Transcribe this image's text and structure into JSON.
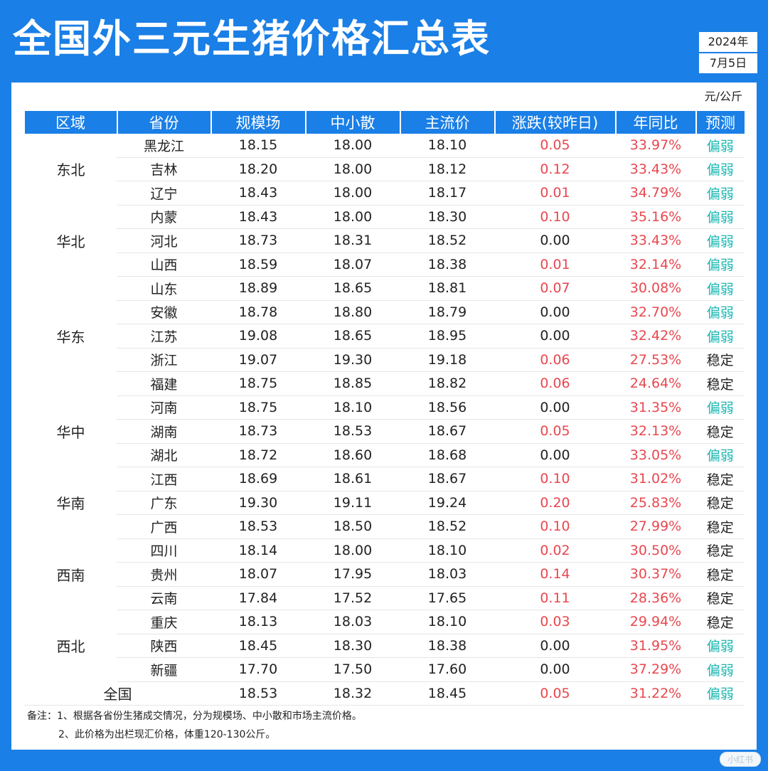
{
  "title": "全国外三元生猪价格汇总表",
  "date": {
    "year": "2024年",
    "day": "7月5日"
  },
  "unit": "元/公斤",
  "headers": [
    "区域",
    "省份",
    "规模场",
    "中小散",
    "主流价",
    "涨跌(较昨日)",
    "年同比",
    "预测"
  ],
  "colors": {
    "header_bg": "#1a7fe6",
    "up": "#e8474f",
    "weak": "#18b6b0"
  },
  "regions": [
    {
      "name": "东北",
      "rows": [
        {
          "province": "黑龙江",
          "scale": "18.15",
          "small": "18.00",
          "main": "18.10",
          "change": "0.05",
          "yoy": "33.97%",
          "forecast": "偏弱"
        },
        {
          "province": "吉林",
          "scale": "18.20",
          "small": "18.00",
          "main": "18.12",
          "change": "0.12",
          "yoy": "33.43%",
          "forecast": "偏弱"
        },
        {
          "province": "辽宁",
          "scale": "18.43",
          "small": "18.00",
          "main": "18.17",
          "change": "0.01",
          "yoy": "34.79%",
          "forecast": "偏弱"
        }
      ]
    },
    {
      "name": "华北",
      "rows": [
        {
          "province": "内蒙",
          "scale": "18.43",
          "small": "18.00",
          "main": "18.30",
          "change": "0.10",
          "yoy": "35.16%",
          "forecast": "偏弱"
        },
        {
          "province": "河北",
          "scale": "18.73",
          "small": "18.31",
          "main": "18.52",
          "change": "0.00",
          "yoy": "33.43%",
          "forecast": "偏弱"
        },
        {
          "province": "山西",
          "scale": "18.59",
          "small": "18.07",
          "main": "18.38",
          "change": "0.01",
          "yoy": "32.14%",
          "forecast": "偏弱"
        }
      ]
    },
    {
      "name": "华东",
      "rows": [
        {
          "province": "山东",
          "scale": "18.89",
          "small": "18.65",
          "main": "18.81",
          "change": "0.07",
          "yoy": "30.08%",
          "forecast": "偏弱"
        },
        {
          "province": "安徽",
          "scale": "18.78",
          "small": "18.80",
          "main": "18.79",
          "change": "0.00",
          "yoy": "32.70%",
          "forecast": "偏弱"
        },
        {
          "province": "江苏",
          "scale": "19.08",
          "small": "18.65",
          "main": "18.95",
          "change": "0.00",
          "yoy": "32.42%",
          "forecast": "偏弱"
        },
        {
          "province": "浙江",
          "scale": "19.07",
          "small": "19.30",
          "main": "19.18",
          "change": "0.06",
          "yoy": "27.53%",
          "forecast": "稳定"
        },
        {
          "province": "福建",
          "scale": "18.75",
          "small": "18.85",
          "main": "18.82",
          "change": "0.06",
          "yoy": "24.64%",
          "forecast": "稳定"
        }
      ]
    },
    {
      "name": "华中",
      "rows": [
        {
          "province": "河南",
          "scale": "18.75",
          "small": "18.10",
          "main": "18.56",
          "change": "0.00",
          "yoy": "31.35%",
          "forecast": "偏弱"
        },
        {
          "province": "湖南",
          "scale": "18.73",
          "small": "18.53",
          "main": "18.67",
          "change": "0.05",
          "yoy": "32.13%",
          "forecast": "稳定"
        },
        {
          "province": "湖北",
          "scale": "18.72",
          "small": "18.60",
          "main": "18.68",
          "change": "0.00",
          "yoy": "33.05%",
          "forecast": "偏弱"
        }
      ]
    },
    {
      "name": "华南",
      "rows": [
        {
          "province": "江西",
          "scale": "18.69",
          "small": "18.61",
          "main": "18.67",
          "change": "0.10",
          "yoy": "31.02%",
          "forecast": "稳定"
        },
        {
          "province": "广东",
          "scale": "19.30",
          "small": "19.11",
          "main": "19.24",
          "change": "0.20",
          "yoy": "25.83%",
          "forecast": "稳定"
        },
        {
          "province": "广西",
          "scale": "18.53",
          "small": "18.50",
          "main": "18.52",
          "change": "0.10",
          "yoy": "27.99%",
          "forecast": "稳定"
        }
      ]
    },
    {
      "name": "西南",
      "rows": [
        {
          "province": "四川",
          "scale": "18.14",
          "small": "18.00",
          "main": "18.10",
          "change": "0.02",
          "yoy": "30.50%",
          "forecast": "稳定"
        },
        {
          "province": "贵州",
          "scale": "18.07",
          "small": "17.95",
          "main": "18.03",
          "change": "0.14",
          "yoy": "30.37%",
          "forecast": "稳定"
        },
        {
          "province": "云南",
          "scale": "17.84",
          "small": "17.52",
          "main": "17.65",
          "change": "0.11",
          "yoy": "28.36%",
          "forecast": "稳定"
        }
      ]
    },
    {
      "name": "西北",
      "rows": [
        {
          "province": "重庆",
          "scale": "18.13",
          "small": "18.03",
          "main": "18.10",
          "change": "0.03",
          "yoy": "29.94%",
          "forecast": "稳定"
        },
        {
          "province": "陕西",
          "scale": "18.45",
          "small": "18.30",
          "main": "18.38",
          "change": "0.00",
          "yoy": "31.95%",
          "forecast": "偏弱"
        },
        {
          "province": "新疆",
          "scale": "17.70",
          "small": "17.50",
          "main": "17.60",
          "change": "0.00",
          "yoy": "37.29%",
          "forecast": "偏弱"
        }
      ]
    }
  ],
  "total": {
    "label": "全国",
    "scale": "18.53",
    "small": "18.32",
    "main": "18.45",
    "change": "0.05",
    "yoy": "31.22%",
    "forecast": "偏弱"
  },
  "notes": [
    "备注：1、根据各省份生猪成交情况，分为规模场、中小散和市场主流价格。",
    "2、此价格为出栏现汇价格，体重120-130公斤。"
  ],
  "watermark": "小红书"
}
